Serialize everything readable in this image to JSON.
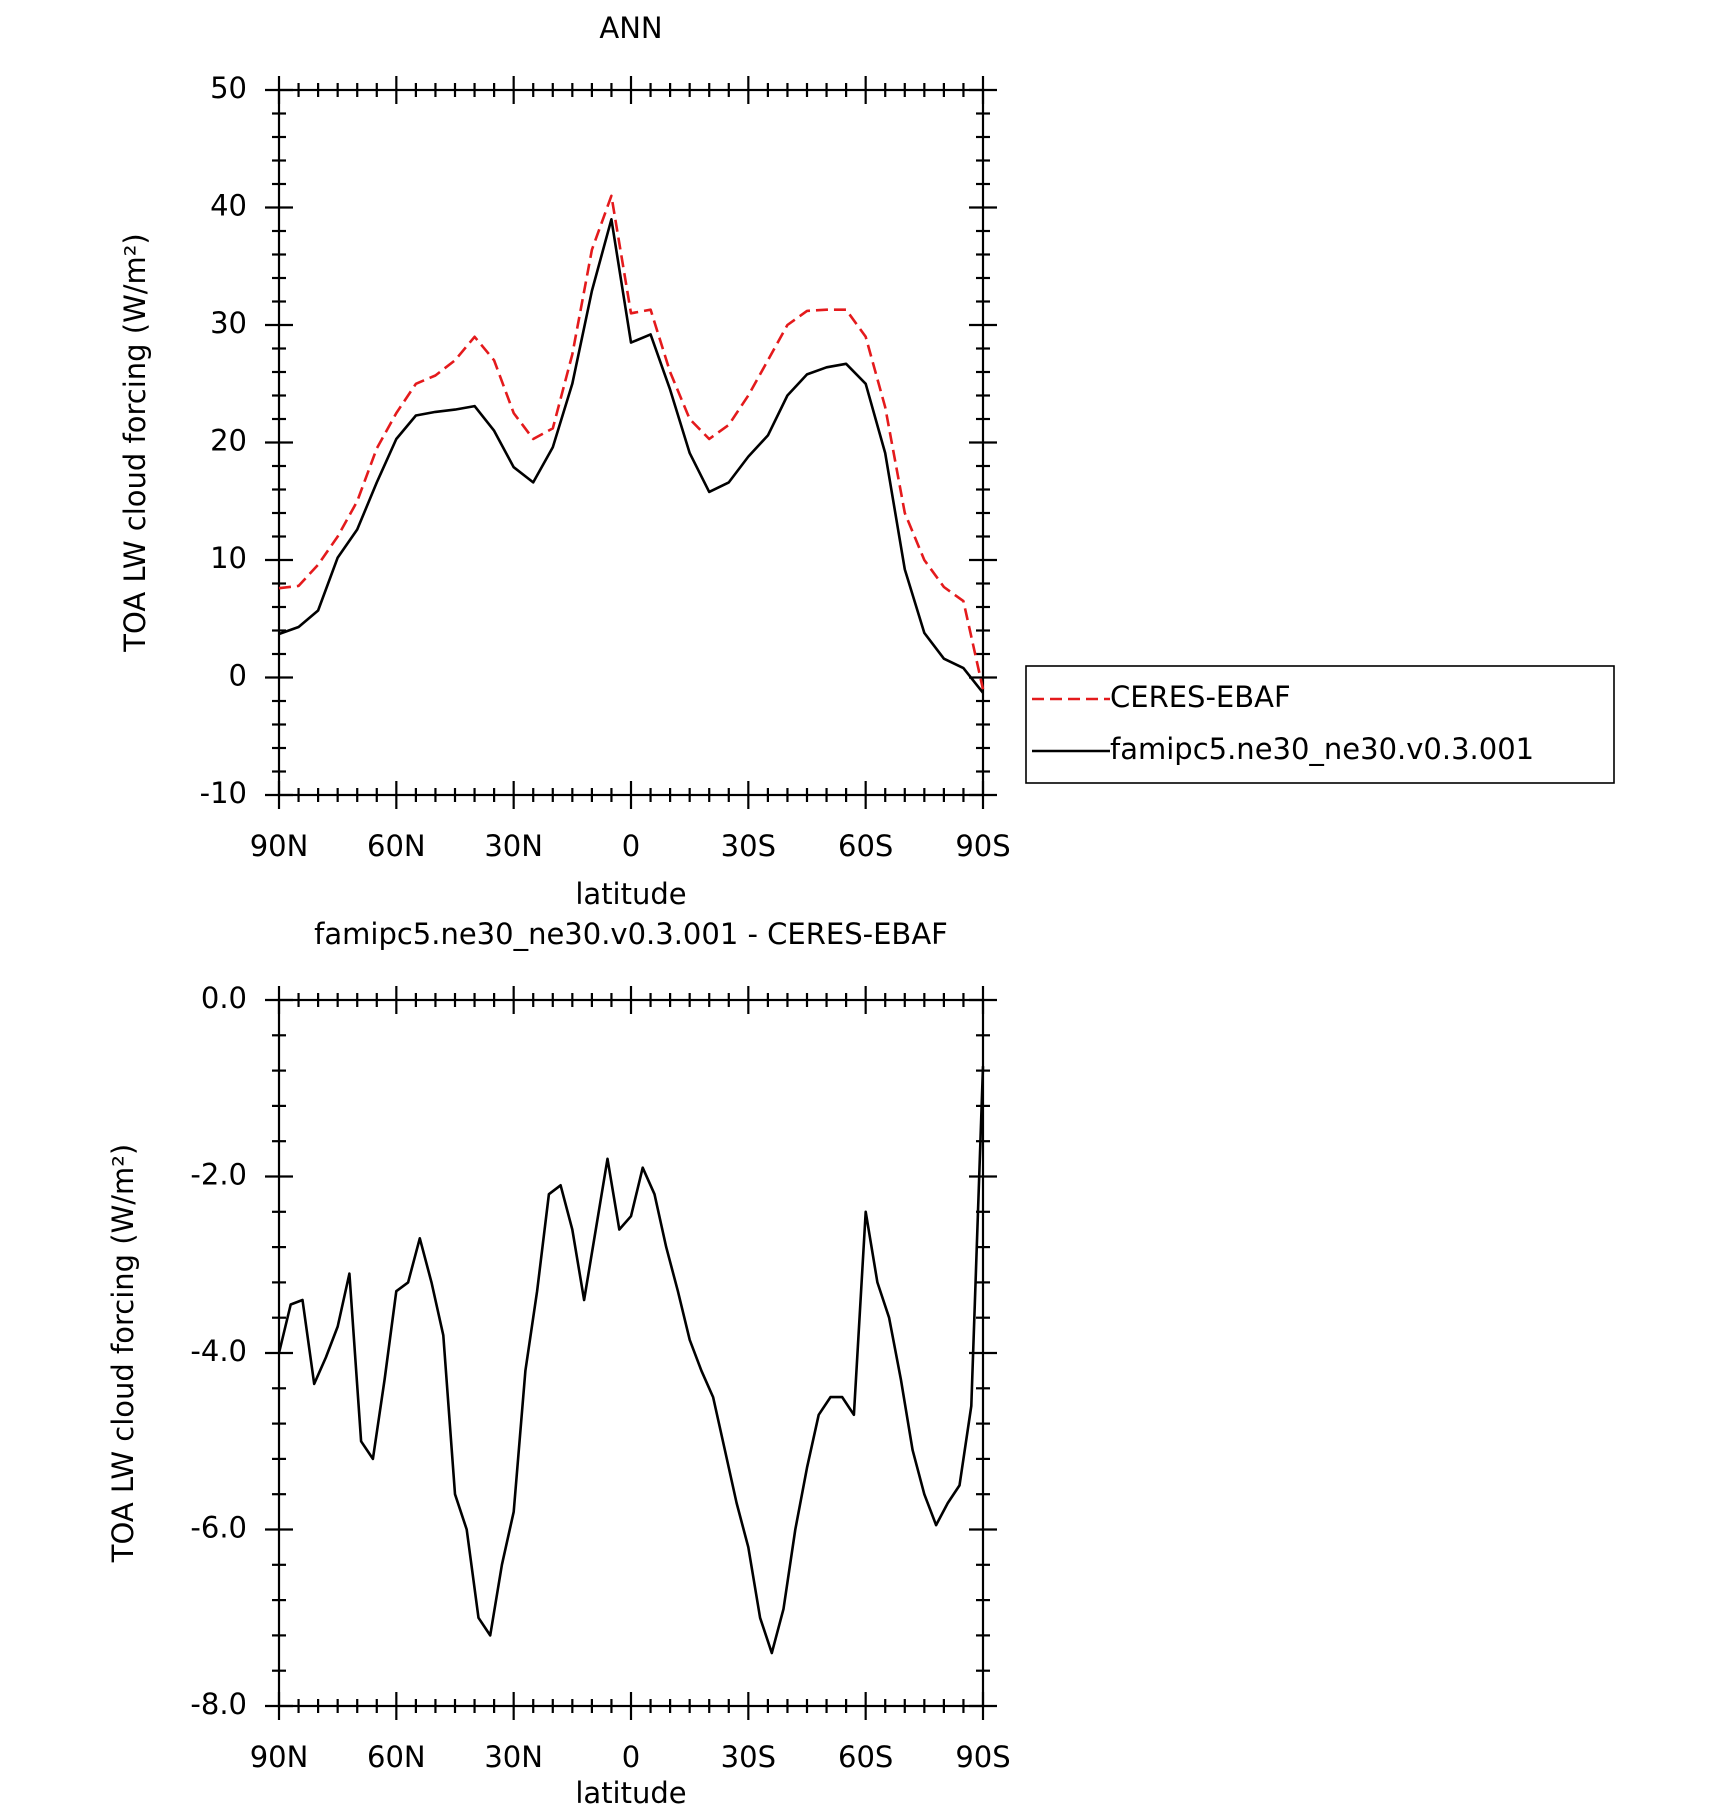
{
  "chart_data": [
    {
      "type": "line",
      "title": "ANN",
      "x_label": "latitude",
      "y_label": "TOA LW cloud forcing (W/m²)",
      "x": [
        90,
        85,
        80,
        75,
        70,
        65,
        60,
        55,
        50,
        45,
        40,
        35,
        30,
        25,
        20,
        15,
        10,
        5,
        0,
        -5,
        -10,
        -15,
        -20,
        -25,
        -30,
        -35,
        -40,
        -45,
        -50,
        -55,
        -60,
        -65,
        -70,
        -75,
        -80,
        -85,
        -90
      ],
      "series": [
        {
          "name": "CERES-EBAF",
          "color": "#e41a1c",
          "dash": true,
          "values": [
            7.6,
            7.8,
            9.6,
            12,
            15,
            19.5,
            22.5,
            25,
            25.7,
            27,
            29,
            27,
            22.5,
            20.3,
            21.2,
            27.5,
            36.4,
            41,
            31,
            31.3,
            26,
            22,
            20.3,
            21.5,
            24,
            27,
            30,
            31.2,
            31.3,
            31.3,
            29,
            23,
            14,
            10,
            7.7,
            6.5,
            -1
          ]
        },
        {
          "name": "famipc5.ne30_ne30.v0.3.001",
          "color": "#000000",
          "dash": false,
          "values": [
            3.7,
            4.3,
            5.7,
            10.2,
            12.6,
            16.6,
            20.3,
            22.3,
            22.6,
            22.8,
            23.1,
            21,
            17.9,
            16.6,
            19.6,
            25,
            32.9,
            39,
            28.5,
            29.2,
            24.5,
            19.1,
            15.8,
            16.6,
            18.8,
            20.6,
            24,
            25.8,
            26.4,
            26.7,
            25,
            19.1,
            9.2,
            3.8,
            1.6,
            0.8,
            -1.3
          ]
        }
      ],
      "xlim": [
        90,
        -90
      ],
      "xticks": [
        {
          "value": 90,
          "label": "90N"
        },
        {
          "value": 60,
          "label": "60N"
        },
        {
          "value": 30,
          "label": "30N"
        },
        0,
        {
          "value": -30,
          "label": "30S"
        },
        {
          "value": -60,
          "label": "60S"
        },
        {
          "value": -90,
          "label": "90S"
        }
      ],
      "ylim": [
        -10,
        50
      ],
      "yticks": [
        -10,
        0,
        10,
        20,
        30,
        40,
        50
      ],
      "legend": "right"
    },
    {
      "type": "line",
      "title": "famipc5.ne30_ne30.v0.3.001 - CERES-EBAF",
      "x_label": "latitude",
      "y_label": "TOA LW cloud forcing (W/m²)",
      "x": [
        90,
        87,
        84,
        81,
        78,
        75,
        72,
        69,
        66,
        63,
        60,
        57,
        54,
        51,
        48,
        45,
        42,
        39,
        36,
        33,
        30,
        27,
        24,
        21,
        18,
        15,
        12,
        9,
        6,
        3,
        0,
        -3,
        -6,
        -9,
        -12,
        -15,
        -18,
        -21,
        -24,
        -27,
        -30,
        -33,
        -36,
        -39,
        -42,
        -45,
        -48,
        -51,
        -54,
        -57,
        -60,
        -63,
        -66,
        -69,
        -72,
        -75,
        -78,
        -81,
        -84,
        -87,
        -90
      ],
      "series": [
        {
          "color": "#000000",
          "dash": false,
          "values": [
            -4.0,
            -3.45,
            -3.4,
            -4.35,
            -4.05,
            -3.7,
            -3.1,
            -5.0,
            -5.2,
            -4.3,
            -3.3,
            -3.2,
            -2.7,
            -3.2,
            -3.8,
            -5.6,
            -6.0,
            -7.0,
            -7.2,
            -6.4,
            -5.8,
            -4.2,
            -3.3,
            -2.2,
            -2.1,
            -2.6,
            -3.4,
            -2.6,
            -1.8,
            -2.6,
            -2.45,
            -1.9,
            -2.2,
            -2.8,
            -3.3,
            -3.85,
            -4.2,
            -4.5,
            -5.1,
            -5.7,
            -6.2,
            -7.0,
            -7.4,
            -6.9,
            -6.0,
            -5.3,
            -4.7,
            -4.5,
            -4.5,
            -4.7,
            -2.4,
            -3.2,
            -3.6,
            -4.3,
            -5.1,
            -5.6,
            -5.95,
            -5.7,
            -5.5,
            -4.6,
            -0.75
          ]
        }
      ],
      "xlim": [
        90,
        -90
      ],
      "xticks": [
        {
          "value": 90,
          "label": "90N"
        },
        {
          "value": 60,
          "label": "60N"
        },
        {
          "value": 30,
          "label": "30N"
        },
        0,
        {
          "value": -30,
          "label": "30S"
        },
        {
          "value": -60,
          "label": "60S"
        },
        {
          "value": -90,
          "label": "90S"
        }
      ],
      "ylim": [
        -8,
        0
      ],
      "yticks": [
        {
          "value": -8,
          "label": "-8.0"
        },
        {
          "value": -6,
          "label": "-6.0"
        },
        {
          "value": -4,
          "label": "-4.0"
        },
        {
          "value": -2,
          "label": "-2.0"
        },
        {
          "value": 0,
          "label": "0.0"
        }
      ]
    }
  ]
}
